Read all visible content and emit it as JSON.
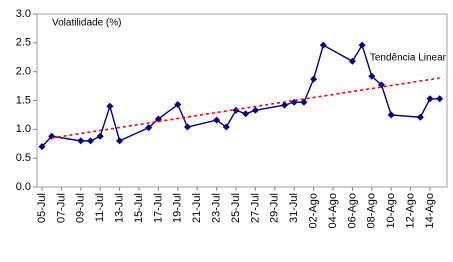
{
  "chart_data": {
    "type": "line",
    "series": [
      {
        "name": "Volatilidade (%)",
        "color": "#000080",
        "style": "solid",
        "marker": "diamond",
        "x": [
          "05-Jul",
          "06-Jul",
          "09-Jul",
          "10-Jul",
          "11-Jul",
          "12-Jul",
          "13-Jul",
          "16-Jul",
          "17-Jul",
          "19-Jul",
          "20-Jul",
          "23-Jul",
          "24-Jul",
          "25-Jul",
          "26-Jul",
          "27-Jul",
          "30-Jul",
          "31-Jul",
          "01-Ago",
          "02-Ago",
          "03-Ago",
          "06-Ago",
          "07-Ago",
          "08-Ago",
          "09-Ago",
          "10-Ago",
          "13-Ago",
          "14-Ago",
          "15-Ago"
        ],
        "values": [
          0.7,
          0.88,
          0.8,
          0.8,
          0.88,
          1.4,
          0.8,
          1.03,
          1.18,
          1.43,
          1.04,
          1.16,
          1.04,
          1.33,
          1.27,
          1.33,
          1.42,
          1.47,
          1.47,
          1.87,
          2.46,
          2.18,
          2.46,
          1.92,
          1.77,
          1.25,
          1.21,
          1.53,
          1.53
        ]
      },
      {
        "name": "Tendência Linear",
        "color": "#ff0000",
        "style": "dotted",
        "x": [
          "06-Jul",
          "15-Ago"
        ],
        "values": [
          0.85,
          1.89
        ]
      }
    ],
    "xticks": [
      "05-Jul",
      "07-Jul",
      "09-Jul",
      "11-Jul",
      "13-Jul",
      "15-Jul",
      "17-Jul",
      "19-Jul",
      "21-Jul",
      "23-Jul",
      "25-Jul",
      "27-Jul",
      "29-Jul",
      "31-Jul",
      "02-Ago",
      "04-Ago",
      "06-Ago",
      "08-Ago",
      "10-Ago",
      "12-Ago",
      "14-Ago"
    ],
    "ylim": [
      0,
      3
    ],
    "yticks": [
      {
        "value": 0,
        "label": "0.0"
      },
      {
        "value": 0.5,
        "label": "0.5"
      },
      {
        "value": 1,
        "label": "1.0"
      },
      {
        "value": 1.5,
        "label": "1.5"
      },
      {
        "value": 2,
        "label": "2.0"
      },
      {
        "value": 2.5,
        "label": "2.5"
      },
      {
        "value": 3,
        "label": "3.0"
      }
    ]
  }
}
